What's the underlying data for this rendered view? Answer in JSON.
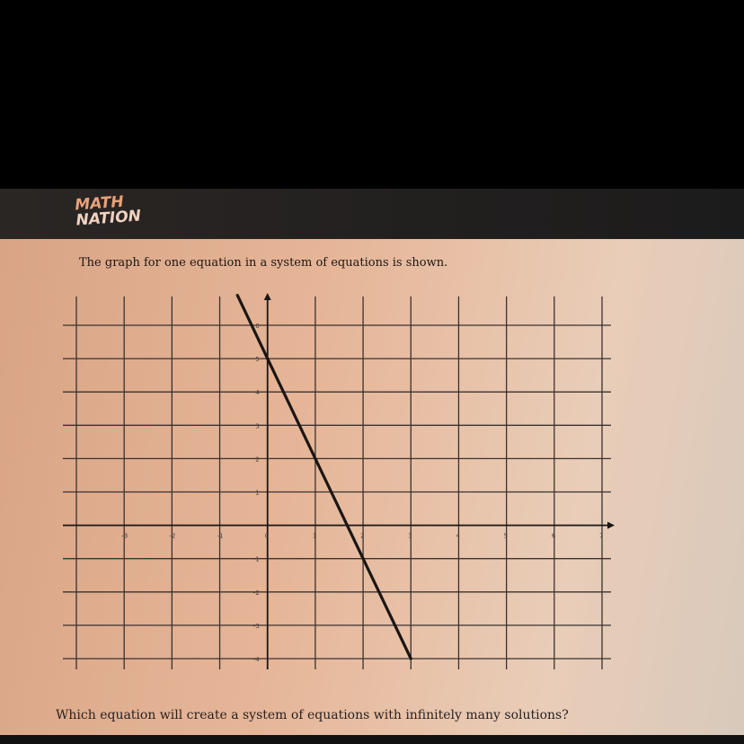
{
  "header": {
    "logo_line1": "MATH",
    "logo_line2": "NATION"
  },
  "prompt": "The graph for one equation in a system of equations is shown.",
  "question": "Which equation will create a system of equations with infinitely many solutions?",
  "colors": {
    "header": "#1f1d1c",
    "content_bg": "#e6b597",
    "line": "#1a1614",
    "logo": "#e8a27a"
  },
  "chart_data": {
    "type": "line",
    "title": "",
    "xlabel": "",
    "ylabel": "",
    "xlim": [
      -4,
      7
    ],
    "ylim": [
      -4,
      6.9
    ],
    "grid": true,
    "x_ticks": [
      "-3",
      "-2",
      "-1",
      "0",
      "1",
      "2",
      "3",
      "4",
      "5",
      "6",
      "7"
    ],
    "x_tick_values": [
      -3,
      -2,
      -1,
      0,
      1,
      2,
      3,
      4,
      5,
      6,
      7
    ],
    "y_ticks": [
      "6",
      "5",
      "4",
      "3",
      "2",
      "1",
      "-1",
      "-2",
      "-3",
      "-4"
    ],
    "y_tick_values": [
      6,
      5,
      4,
      3,
      2,
      1,
      -1,
      -2,
      -3,
      -4
    ],
    "series": [
      {
        "points": [
          [
            -0.63,
            6.9
          ],
          [
            0,
            5
          ],
          [
            1,
            2
          ],
          [
            3,
            -4
          ]
        ]
      }
    ]
  }
}
